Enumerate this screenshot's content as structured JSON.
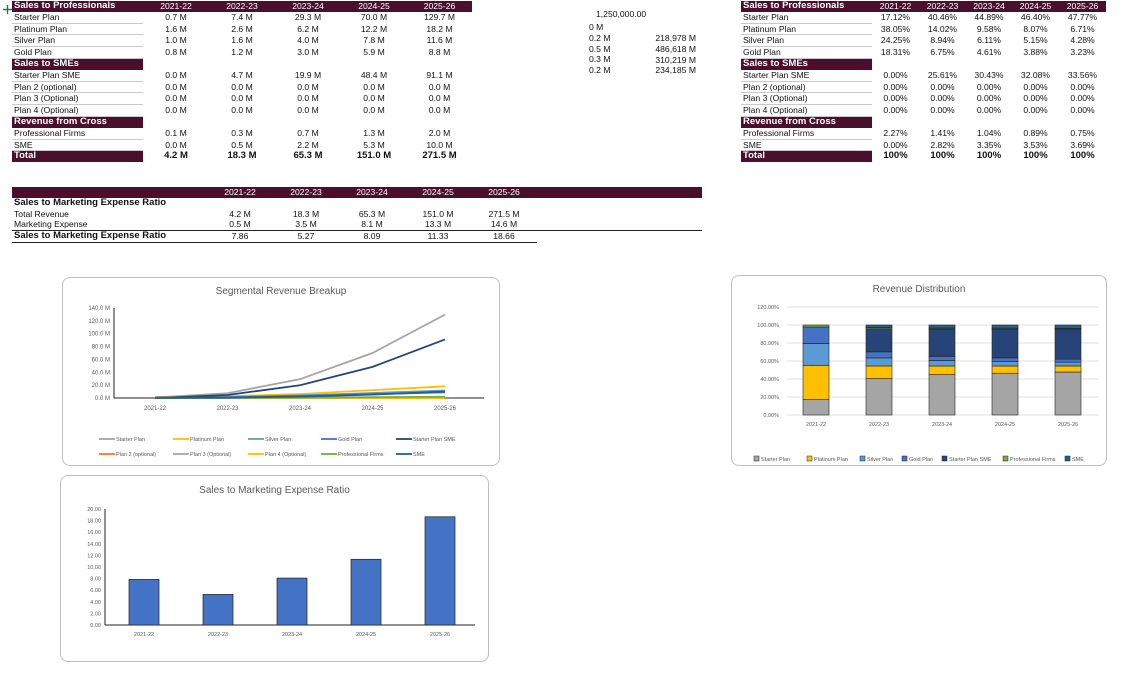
{
  "years": [
    "2021-22",
    "2022-23",
    "2023-24",
    "2024-25",
    "2025-26"
  ],
  "revenue_table": {
    "sections": [
      {
        "title": "Sales to Professionals",
        "rows": [
          {
            "label": "Starter Plan",
            "values": [
              "0.7 M",
              "7.4 M",
              "29.3 M",
              "70.0 M",
              "129.7 M"
            ]
          },
          {
            "label": "Platinum Plan",
            "values": [
              "1.6 M",
              "2.6 M",
              "6.2 M",
              "12.2 M",
              "18.2 M"
            ]
          },
          {
            "label": "Silver Plan",
            "values": [
              "1.0 M",
              "1.6 M",
              "4.0 M",
              "7.8 M",
              "11.6 M"
            ]
          },
          {
            "label": "Gold Plan",
            "values": [
              "0.8 M",
              "1.2 M",
              "3.0 M",
              "5.9 M",
              "8.8 M"
            ]
          }
        ]
      },
      {
        "title": "Sales to SMEs",
        "rows": [
          {
            "label": "Starter Plan SME",
            "values": [
              "0.0 M",
              "4.7 M",
              "19.9 M",
              "48.4 M",
              "91.1 M"
            ]
          },
          {
            "label": "Plan 2 (optional)",
            "values": [
              "0.0 M",
              "0.0 M",
              "0.0 M",
              "0.0 M",
              "0.0 M"
            ]
          },
          {
            "label": "Plan 3 (Optional)",
            "values": [
              "0.0 M",
              "0.0 M",
              "0.0 M",
              "0.0 M",
              "0.0 M"
            ]
          },
          {
            "label": "Plan 4 (Optional)",
            "values": [
              "0.0 M",
              "0.0 M",
              "0.0 M",
              "0.0 M",
              "0.0 M"
            ]
          }
        ]
      },
      {
        "title": "Revenue from Cross",
        "rows": [
          {
            "label": "Professional Firms",
            "values": [
              "0.1 M",
              "0.3 M",
              "0.7 M",
              "1.3 M",
              "2.0 M"
            ]
          },
          {
            "label": "SME",
            "values": [
              "0.0 M",
              "0.5 M",
              "2.2 M",
              "5.3 M",
              "10.0 M"
            ]
          }
        ]
      }
    ],
    "total": {
      "label": "Total",
      "values": [
        "4.2 M",
        "18.3 M",
        "65.3 M",
        "151.0 M",
        "271.5 M"
      ]
    }
  },
  "side_values": {
    "header": "1,250,000.00",
    "col1": [
      "0 M",
      "0.2 M",
      "0.5 M",
      "0.3 M",
      "0.2 M"
    ],
    "col2": [
      "218,978 M",
      "486,618 M",
      "310,219 M",
      "234,185 M"
    ]
  },
  "share_table": {
    "sections": [
      {
        "title": "Sales to Professionals",
        "rows": [
          {
            "label": "Starter Plan",
            "values": [
              "17.12%",
              "40.46%",
              "44.89%",
              "46.40%",
              "47.77%"
            ]
          },
          {
            "label": "Platinum Plan",
            "values": [
              "38.05%",
              "14.02%",
              "9.58%",
              "8.07%",
              "6.71%"
            ]
          },
          {
            "label": "Silver Plan",
            "values": [
              "24.25%",
              "8.94%",
              "6.11%",
              "5.15%",
              "4.28%"
            ]
          },
          {
            "label": "Gold Plan",
            "values": [
              "18.31%",
              "6.75%",
              "4.61%",
              "3.88%",
              "3.23%"
            ]
          }
        ]
      },
      {
        "title": "Sales to SMEs",
        "rows": [
          {
            "label": "Starter Plan SME",
            "values": [
              "0.00%",
              "25.61%",
              "30.43%",
              "32.08%",
              "33.56%"
            ]
          },
          {
            "label": "Plan 2 (optional)",
            "values": [
              "0.00%",
              "0.00%",
              "0.00%",
              "0.00%",
              "0.00%"
            ]
          },
          {
            "label": "Plan 3 (Optional)",
            "values": [
              "0.00%",
              "0.00%",
              "0.00%",
              "0.00%",
              "0.00%"
            ]
          },
          {
            "label": "Plan 4 (Optional)",
            "values": [
              "0.00%",
              "0.00%",
              "0.00%",
              "0.00%",
              "0.00%"
            ]
          }
        ]
      },
      {
        "title": "Revenue from Cross",
        "rows": [
          {
            "label": "Professional Firms",
            "values": [
              "2.27%",
              "1.41%",
              "1.04%",
              "0.89%",
              "0.75%"
            ]
          },
          {
            "label": "SME",
            "values": [
              "0.00%",
              "2.82%",
              "3.35%",
              "3.53%",
              "3.69%"
            ]
          }
        ]
      }
    ],
    "total": {
      "label": "Total",
      "values": [
        "100%",
        "100%",
        "100%",
        "100%",
        "100%"
      ]
    }
  },
  "ratio_table": {
    "title": "Sales to Marketing Expense Ratio",
    "rows": [
      {
        "label": "Total Revenue",
        "values": [
          "4.2 M",
          "18.3 M",
          "65.3 M",
          "151.0 M",
          "271.5 M"
        ]
      },
      {
        "label": "Marketing Expense",
        "values": [
          "0.5 M",
          "3.5 M",
          "8.1 M",
          "13.3 M",
          "14.6 M"
        ]
      }
    ],
    "result": {
      "label": "Sales to Marketing Expense Ratio",
      "values": [
        "7.86",
        "5.27",
        "8.09",
        "11.33",
        "18.66"
      ]
    }
  },
  "colors": {
    "header_bg": "#4a0f2c",
    "starter": "#a5a5a5",
    "platinum": "#ffc000",
    "silver": "#5b9bd5",
    "gold": "#4472c4",
    "starter_sme": "#264478",
    "plan2": "#ed7d31",
    "plan3": "#a5a5a5",
    "plan4": "#ffc000",
    "prof_firms": "#70ad47",
    "sme": "#255e91",
    "bar": "#4472c4"
  },
  "chart_data": [
    {
      "type": "line",
      "title": "Segmental Revenue Breakup",
      "categories": [
        "2021-22",
        "2022-23",
        "2023-24",
        "2024-25",
        "2025-26"
      ],
      "ylim": [
        0,
        140
      ],
      "yticks": [
        "0.0 M",
        "20.0 M",
        "40.0 M",
        "60.0 M",
        "80.0 M",
        "100.0 M",
        "120.0 M",
        "140.0 M"
      ],
      "series": [
        {
          "name": "Starter Plan",
          "values": [
            0.7,
            7.4,
            29.3,
            70.0,
            129.7
          ]
        },
        {
          "name": "Platinum Plan",
          "values": [
            1.6,
            2.6,
            6.2,
            12.2,
            18.2
          ]
        },
        {
          "name": "Silver Plan",
          "values": [
            1.0,
            1.6,
            4.0,
            7.8,
            11.6
          ]
        },
        {
          "name": "Gold Plan",
          "values": [
            0.8,
            1.2,
            3.0,
            5.9,
            8.8
          ]
        },
        {
          "name": "Starter Plan SME",
          "values": [
            0.0,
            4.7,
            19.9,
            48.4,
            91.1
          ]
        },
        {
          "name": "Plan 2 (optional)",
          "values": [
            0,
            0,
            0,
            0,
            0
          ]
        },
        {
          "name": "Plan 3 (Optional)",
          "values": [
            0,
            0,
            0,
            0,
            0
          ]
        },
        {
          "name": "Plan 4 (Optional)",
          "values": [
            0,
            0,
            0,
            0,
            0
          ]
        },
        {
          "name": "Professional Firms",
          "values": [
            0.1,
            0.3,
            0.7,
            1.3,
            2.0
          ]
        },
        {
          "name": "SME",
          "values": [
            0.0,
            0.5,
            2.2,
            5.3,
            10.0
          ]
        }
      ],
      "legend": "bottom"
    },
    {
      "type": "bar",
      "stacked": true,
      "title": "Revenue Distribution",
      "categories": [
        "2021-22",
        "2022-23",
        "2023-24",
        "2024-25",
        "2025-26"
      ],
      "ylim": [
        0,
        120
      ],
      "yticks": [
        "0.00%",
        "20.00%",
        "40.00%",
        "60.00%",
        "80.00%",
        "100.00%",
        "120.00%"
      ],
      "series": [
        {
          "name": "Starter Plan",
          "values": [
            17.12,
            40.46,
            44.89,
            46.4,
            47.77
          ]
        },
        {
          "name": "Platinum Plan",
          "values": [
            38.05,
            14.02,
            9.58,
            8.07,
            6.71
          ]
        },
        {
          "name": "Silver Plan",
          "values": [
            24.25,
            8.94,
            6.11,
            5.15,
            4.28
          ]
        },
        {
          "name": "Gold Plan",
          "values": [
            18.31,
            6.75,
            4.61,
            3.88,
            3.23
          ]
        },
        {
          "name": "Starter Plan SME",
          "values": [
            0.0,
            25.61,
            30.43,
            32.08,
            33.56
          ]
        },
        {
          "name": "Professional Firms",
          "values": [
            2.27,
            1.41,
            1.04,
            0.89,
            0.75
          ]
        },
        {
          "name": "SME",
          "values": [
            0.0,
            2.82,
            3.35,
            3.53,
            3.69
          ]
        }
      ],
      "legend": "bottom"
    },
    {
      "type": "bar",
      "title": "Sales to Marketing Expense Ratio",
      "categories": [
        "2021-22",
        "2022-23",
        "2023-24",
        "2024-25",
        "2025-26"
      ],
      "values": [
        7.86,
        5.27,
        8.09,
        11.33,
        18.66
      ],
      "ylim": [
        0,
        20
      ],
      "yticks": [
        "0.00",
        "2.00",
        "4.00",
        "6.00",
        "8.00",
        "10.00",
        "12.00",
        "14.00",
        "16.00",
        "18.00",
        "20.00"
      ]
    }
  ]
}
